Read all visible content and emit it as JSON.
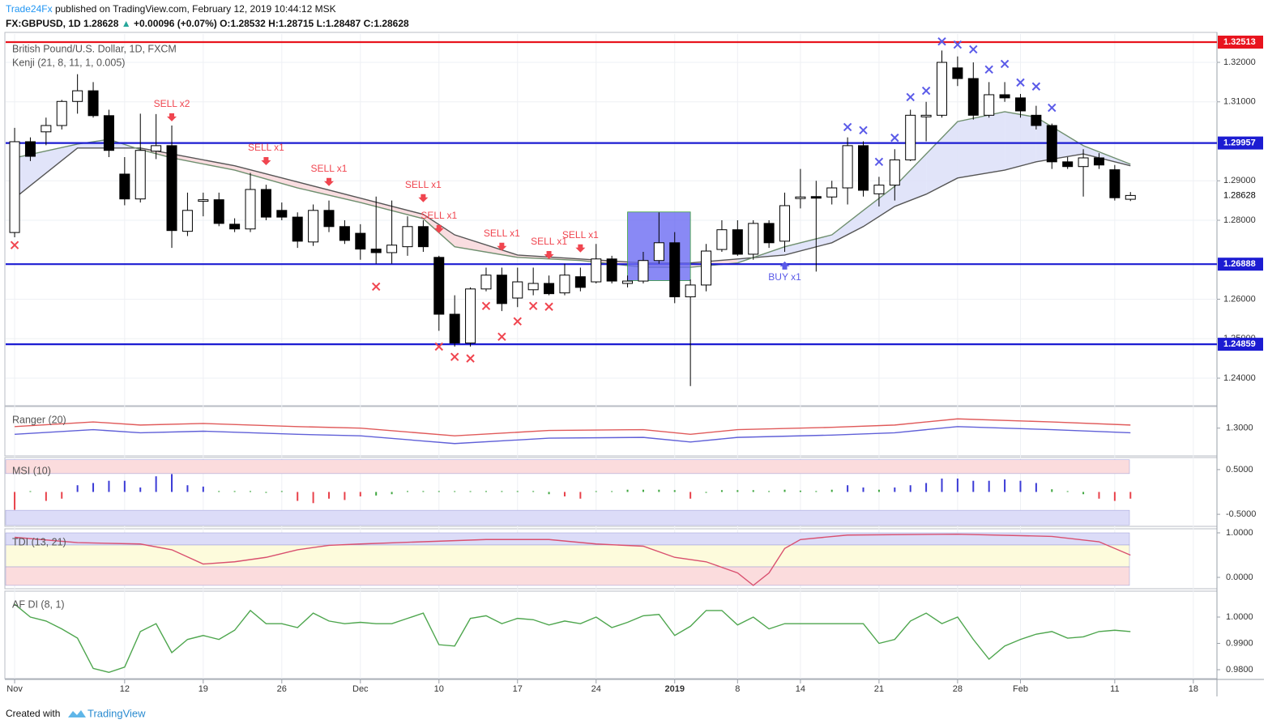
{
  "header": {
    "publisher": "Trade24Fx",
    "published": "published on TradingView.com, February 12, 2019 10:44:12 MSK",
    "symbol": "FX:GBPUSD, 1D",
    "arrow": "▲",
    "change": "+0.00096 (+0.07%)",
    "ohlc_labels": [
      "O:",
      "H:",
      "L:",
      "C:"
    ]
  },
  "chart_data": {
    "type": "candlestick",
    "title": "British Pound/U.S. Dollar, 1D, FXCM",
    "x": [
      0,
      1,
      2,
      3,
      4,
      5,
      6,
      7,
      8,
      9,
      10,
      11,
      12,
      13,
      14,
      15,
      16,
      17,
      18,
      19,
      20,
      21,
      22,
      23,
      24,
      25,
      26,
      27,
      28,
      29,
      30,
      31,
      32,
      33,
      34,
      35,
      36,
      37,
      38,
      39,
      40,
      41,
      42,
      43,
      44,
      45,
      46,
      47,
      48,
      49,
      50,
      51,
      52,
      53,
      54,
      55,
      56,
      57,
      58,
      59,
      60,
      61,
      62,
      63,
      64,
      65,
      66,
      67,
      68,
      69,
      70,
      71
    ],
    "open": [
      1.2769,
      1.2999,
      1.3024,
      1.304,
      1.3101,
      1.3128,
      1.3065,
      1.2917,
      1.2854,
      1.2975,
      1.2989,
      1.2772,
      1.2848,
      1.2852,
      1.279,
      1.2778,
      1.2878,
      1.2825,
      1.2808,
      1.2745,
      1.2825,
      1.2784,
      1.2767,
      1.2727,
      1.2718,
      1.2733,
      1.2784,
      1.2706,
      1.2562,
      1.2489,
      1.2626,
      1.2661,
      1.2603,
      1.2624,
      1.264,
      1.2616,
      1.2657,
      1.2644,
      1.2702,
      1.264,
      1.2646,
      1.2698,
      1.2743,
      1.2606,
      1.2636,
      1.2726,
      1.2776,
      1.2714,
      1.2792,
      1.2747,
      1.2855,
      1.286,
      1.2859,
      1.2882,
      1.2989,
      1.2867,
      1.2889,
      1.2953,
      1.3062,
      1.3066,
      1.3186,
      1.3159,
      1.3066,
      1.3118,
      1.311,
      1.3066,
      1.304,
      1.2948,
      1.2936,
      1.2958,
      1.2928,
      1.28532
    ],
    "high": [
      1.3034,
      1.301,
      1.306,
      1.3105,
      1.317,
      1.315,
      1.308,
      1.296,
      1.307,
      1.3069,
      1.304,
      1.287,
      1.287,
      1.287,
      1.2805,
      1.292,
      1.289,
      1.2845,
      1.282,
      1.284,
      1.285,
      1.28,
      1.279,
      1.286,
      1.285,
      1.281,
      1.28,
      1.271,
      1.261,
      1.263,
      1.268,
      1.268,
      1.268,
      1.268,
      1.266,
      1.269,
      1.268,
      1.274,
      1.271,
      1.266,
      1.272,
      1.282,
      1.277,
      1.265,
      1.274,
      1.28,
      1.28,
      1.28,
      1.28,
      1.287,
      1.293,
      1.29,
      1.29,
      1.301,
      1.3,
      1.291,
      1.298,
      1.308,
      1.31,
      1.323,
      1.3215,
      1.32,
      1.315,
      1.315,
      1.312,
      1.309,
      1.3045,
      1.296,
      1.298,
      1.297,
      1.294,
      1.28715
    ],
    "low": [
      1.2757,
      1.295,
      1.299,
      1.303,
      1.307,
      1.306,
      1.296,
      1.2838,
      1.2845,
      1.2955,
      1.273,
      1.276,
      1.281,
      1.2785,
      1.277,
      1.277,
      1.28,
      1.28,
      1.273,
      1.2735,
      1.277,
      1.274,
      1.27,
      1.269,
      1.269,
      1.271,
      1.272,
      1.252,
      1.248,
      1.248,
      1.262,
      1.257,
      1.258,
      1.261,
      1.261,
      1.261,
      1.262,
      1.264,
      1.264,
      1.263,
      1.264,
      1.269,
      1.259,
      1.238,
      1.262,
      1.272,
      1.271,
      1.27,
      1.273,
      1.272,
      1.283,
      1.267,
      1.284,
      1.284,
      1.286,
      1.2835,
      1.285,
      1.295,
      1.3,
      1.306,
      1.314,
      1.3055,
      1.306,
      1.31,
      1.306,
      1.303,
      1.293,
      1.293,
      1.286,
      1.293,
      1.285,
      1.28487
    ],
    "close": [
      1.2999,
      1.2962,
      1.304,
      1.3101,
      1.3128,
      1.3065,
      1.2977,
      1.2854,
      1.2977,
      1.2989,
      1.2774,
      1.2825,
      1.2852,
      1.2792,
      1.2778,
      1.2878,
      1.2808,
      1.2808,
      1.2747,
      1.2825,
      1.2784,
      1.2749,
      1.2727,
      1.2718,
      1.2737,
      1.2784,
      1.2733,
      1.2562,
      1.2489,
      1.2626,
      1.2661,
      1.2589,
      1.2644,
      1.264,
      1.2614,
      1.2661,
      1.263,
      1.2702,
      1.2646,
      1.2646,
      1.2698,
      1.2743,
      1.2606,
      1.2636,
      1.2722,
      1.2776,
      1.2714,
      1.2792,
      1.2743,
      1.2837,
      1.2859,
      1.2856,
      1.2882,
      1.2989,
      1.2876,
      1.2889,
      1.2953,
      1.3066,
      1.3066,
      1.32,
      1.3159,
      1.3066,
      1.3118,
      1.311,
      1.3077,
      1.304,
      1.2948,
      1.2936,
      1.2958,
      1.294,
      1.2857,
      1.28628
    ],
    "up_color": "#ffffff",
    "down_color": "#000000",
    "ylim": [
      1.23323,
      1.32718
    ],
    "yticks": [
      {
        "value": 1.32,
        "label": "1.32000"
      },
      {
        "value": 1.31,
        "label": "1.31000"
      },
      {
        "value": 1.29,
        "label": "1.29000"
      },
      {
        "value": 1.28,
        "label": "1.28000"
      },
      {
        "value": 1.26,
        "label": "1.26000"
      },
      {
        "value": 1.25,
        "label": "1.25000"
      },
      {
        "value": 1.24,
        "label": "1.24000"
      }
    ],
    "xlim": [
      -0.57,
      76.4
    ],
    "xticks": [
      {
        "value": 0,
        "label": "Nov"
      },
      {
        "value": 7,
        "label": "12"
      },
      {
        "value": 12,
        "label": "19"
      },
      {
        "value": 17,
        "label": "26"
      },
      {
        "value": 22,
        "label": "Dec"
      },
      {
        "value": 27,
        "label": "10"
      },
      {
        "value": 32,
        "label": "17"
      },
      {
        "value": 37,
        "label": "24"
      },
      {
        "value": 42,
        "label": "2019"
      },
      {
        "value": 46,
        "label": "8"
      },
      {
        "value": 50,
        "label": "14"
      },
      {
        "value": 55,
        "label": "21"
      },
      {
        "value": 60,
        "label": "28"
      },
      {
        "value": 64,
        "label": "Feb"
      },
      {
        "value": 70,
        "label": "11"
      },
      {
        "value": 75,
        "label": "18"
      }
    ],
    "grid": true,
    "kenji": {
      "label": "Kenji (21, 8, 11, 1, 0.005)",
      "x": [
        0,
        4,
        6,
        8,
        10,
        14,
        18,
        22,
        26,
        28,
        32,
        36,
        40,
        43,
        46,
        49,
        52,
        54,
        56,
        58,
        60,
        63,
        65,
        68,
        71
      ],
      "dark": [
        1.2856,
        1.2983,
        1.2983,
        1.2983,
        1.2968,
        1.2938,
        1.2897,
        1.2856,
        1.2815,
        1.2763,
        1.2712,
        1.2702,
        1.2692,
        1.2692,
        1.2702,
        1.2712,
        1.2743,
        1.2784,
        1.2835,
        1.2866,
        1.2907,
        1.2927,
        1.2948,
        1.2968,
        1.2938
      ],
      "light": [
        1.2958,
        1.2993,
        1.3005,
        1.2979,
        1.2958,
        1.2927,
        1.2882,
        1.2845,
        1.2804,
        1.2733,
        1.2706,
        1.2698,
        1.2681,
        1.2681,
        1.2692,
        1.2733,
        1.2763,
        1.2825,
        1.2886,
        1.2968,
        1.305,
        1.3075,
        1.3061,
        1.2989,
        1.2942
      ],
      "dark_color": "#555555",
      "light_color": "#6f8f6f",
      "bear_fill": "#f8d7da",
      "bull_fill": "#dcdff8"
    },
    "levels": [
      {
        "value": 1.32513,
        "color": "#e8141e"
      },
      {
        "value": 1.29957,
        "color": "#1c1cd2"
      },
      {
        "value": 1.26888,
        "color": "#1c1cd2"
      },
      {
        "value": 1.24859,
        "color": "#1c1cd2"
      }
    ],
    "box": {
      "x": [
        39,
        43
      ],
      "y": [
        1.2647,
        1.2821
      ],
      "color": "#6b6bf2"
    },
    "signals": [
      {
        "label": "SELL x2",
        "x": 10,
        "side": "sell"
      },
      {
        "label": "SELL x1",
        "x": 16,
        "side": "sell"
      },
      {
        "label": "SELL x1",
        "x": 20,
        "side": "sell"
      },
      {
        "label": "SELL x1",
        "x": 26,
        "side": "sell"
      },
      {
        "label": "SELL x1",
        "x": 27,
        "side": "sell"
      },
      {
        "label": "SELL x1",
        "x": 31,
        "side": "sell"
      },
      {
        "label": "SELL x1",
        "x": 34,
        "side": "sell"
      },
      {
        "label": "SELL x1",
        "x": 36,
        "side": "sell"
      },
      {
        "label": "BUY x1",
        "x": 49,
        "side": "buy"
      }
    ],
    "sell_color": "#f0454f",
    "buy_color": "#5a5ae8",
    "crosses": [
      {
        "color": "#f0454f",
        "x": [
          0,
          23,
          27,
          28,
          29,
          30,
          31,
          32,
          33,
          34
        ],
        "values": [
          1.2737,
          1.2632,
          1.248,
          1.2454,
          1.245,
          1.2583,
          1.2505,
          1.2544,
          1.2583,
          1.2581
        ]
      },
      {
        "color": "#5a5ae8",
        "x": [
          53,
          54,
          55,
          56,
          57,
          58,
          59,
          60,
          61,
          62,
          63,
          64,
          65,
          66
        ],
        "values": [
          1.3036,
          1.3028,
          1.2948,
          1.3009,
          1.3112,
          1.3128,
          1.3253,
          1.3245,
          1.3233,
          1.3182,
          1.3196,
          1.3149,
          1.3139,
          1.3085
        ]
      }
    ],
    "panels": [
      {
        "type": "line",
        "label": "Ranger (20)",
        "ylim": [
          1.282,
          1.314
        ],
        "yticks": [
          {
            "value": 1.3,
            "label": "1.3000"
          }
        ],
        "series": [
          {
            "color": "#e05a5a",
            "x": [
              0,
              5,
              8,
              12,
              18,
              22,
              28,
              34,
              40,
              43,
              46,
              52,
              56,
              60,
              66,
              71
            ],
            "values": [
              1.301,
              1.304,
              1.302,
              1.303,
              1.301,
              1.3,
              1.295,
              1.2985,
              1.299,
              1.296,
              1.299,
              1.3005,
              1.302,
              1.306,
              1.304,
              1.302
            ]
          },
          {
            "color": "#6060d8",
            "x": [
              0,
              5,
              8,
              12,
              18,
              22,
              28,
              34,
              40,
              43,
              46,
              52,
              56,
              60,
              66,
              71
            ],
            "values": [
              1.296,
              1.299,
              1.297,
              1.298,
              1.296,
              1.295,
              1.29,
              1.2935,
              1.294,
              1.291,
              1.294,
              1.2955,
              1.297,
              1.301,
              1.299,
              1.297
            ]
          }
        ]
      },
      {
        "type": "bar",
        "label": "MSI (10)",
        "ylim": [
          -0.77,
          0.77
        ],
        "yticks": [
          {
            "value": 0.5,
            "label": "0.5000"
          },
          {
            "value": -0.5,
            "label": "-0.5000"
          }
        ],
        "zones": [
          {
            "range": [
              0.41,
              0.72
            ],
            "color": "#fbdcdd"
          },
          {
            "range": [
              -0.74,
              -0.41
            ],
            "color": "#dcdcf8"
          }
        ],
        "threshold": 0.08,
        "up_color": "#3b3bd6",
        "down_color": "#e8414a",
        "neutral_color": "#3fa63f",
        "values": [
          -0.4,
          0,
          -0.2,
          -0.15,
          0.15,
          0.2,
          0.25,
          0.25,
          0.1,
          0.35,
          0.4,
          0.15,
          0.12,
          0.02,
          0.02,
          0.02,
          -0.02,
          0.02,
          -0.2,
          -0.25,
          -0.15,
          -0.18,
          -0.1,
          -0.08,
          -0.05,
          0.02,
          0.02,
          0.02,
          0,
          0,
          0.02,
          0.02,
          0.02,
          0.02,
          -0.05,
          -0.1,
          -0.15,
          0,
          0,
          0.05,
          0.05,
          0.05,
          0.04,
          -0.15,
          -0.02,
          0.04,
          0.04,
          0.04,
          0.02,
          0.05,
          0.03,
          0.02,
          0.05,
          0.15,
          0.1,
          0.05,
          0.1,
          0.15,
          0.2,
          0.3,
          0.3,
          0.25,
          0.25,
          0.28,
          0.25,
          0.2,
          0.06,
          0,
          -0.05,
          -0.15,
          -0.2,
          -0.15
        ]
      },
      {
        "type": "line",
        "label": "TDI (13, 21)",
        "ylim": [
          -0.2545,
          1.0909
        ],
        "yticks": [
          {
            "value": 1,
            "label": "1.0000"
          },
          {
            "value": 0,
            "label": "0.0000"
          }
        ],
        "zones": [
          {
            "range": [
              0.727,
              1.0
            ],
            "color": "#dcdcf8"
          },
          {
            "range": [
              0.236,
              0.727
            ],
            "color": "#fdfbdc"
          },
          {
            "range": [
              -0.18,
              0.236
            ],
            "color": "#fbdcdd"
          }
        ],
        "series": [
          {
            "color": "#d9506f",
            "x": [
              0,
              4,
              8,
              10,
              12,
              14,
              16,
              18,
              20,
              22,
              26,
              30,
              34,
              37,
              40,
              42,
              44,
              46,
              47,
              48,
              49,
              50,
              53,
              60,
              66,
              69,
              71
            ],
            "values": [
              0.9,
              0.78,
              0.75,
              0.62,
              0.3,
              0.35,
              0.45,
              0.62,
              0.72,
              0.75,
              0.8,
              0.85,
              0.85,
              0.75,
              0.7,
              0.45,
              0.35,
              0.1,
              -0.18,
              0.1,
              0.65,
              0.85,
              0.95,
              0.97,
              0.92,
              0.8,
              0.5
            ]
          }
        ]
      },
      {
        "type": "line",
        "label": "AF DI (8, 1)",
        "ylim": [
          0.97662,
          1.00985
        ],
        "yticks": [
          {
            "value": 1,
            "label": "1.0000"
          },
          {
            "value": 0.99,
            "label": "0.9900"
          },
          {
            "value": 0.98,
            "label": "0.9800"
          }
        ],
        "series": [
          {
            "color": "#4ea64e",
            "values": [
              1.0049,
              1.0,
              0.9985,
              0.9955,
              0.992,
              0.9805,
              0.979,
              0.981,
              0.9945,
              0.9975,
              0.9865,
              0.9915,
              0.993,
              0.9915,
              0.995,
              1.0025,
              0.9975,
              0.9975,
              0.996,
              1.0015,
              0.9985,
              0.9975,
              0.998,
              0.9975,
              0.9975,
              0.9995,
              1.0015,
              0.9895,
              0.989,
              0.9995,
              1.0005,
              0.9975,
              0.9995,
              0.999,
              0.997,
              0.9985,
              0.9975,
              1.0,
              0.996,
              0.998,
              1.0005,
              1.001,
              0.993,
              0.9965,
              1.0025,
              1.0025,
              0.997,
              1.0,
              0.9955,
              0.9975,
              0.9975,
              0.9975,
              0.9975,
              0.9975,
              0.9975,
              0.99,
              0.9915,
              0.9985,
              1.0015,
              0.9975,
              1.0,
              0.9915,
              0.984,
              0.989,
              0.9915,
              0.9935,
              0.9945,
              0.992,
              0.9925,
              0.9945,
              0.995,
              0.9945
            ]
          }
        ]
      }
    ]
  },
  "footer": {
    "created": "Created with",
    "brand": "TradingView"
  }
}
